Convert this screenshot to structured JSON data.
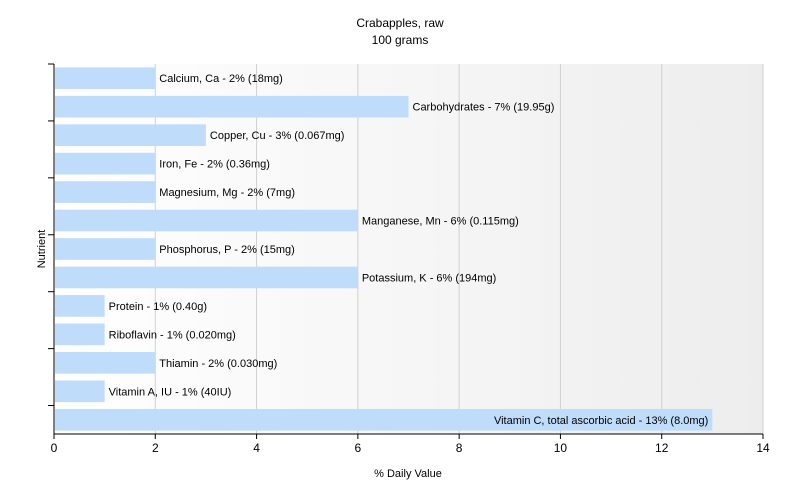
{
  "chart_data": {
    "type": "bar",
    "orientation": "horizontal",
    "title": "Crabapples, raw",
    "subtitle": "100 grams",
    "xlabel": "% Daily Value",
    "ylabel": "Nutrient",
    "xlim": [
      0,
      14
    ],
    "xticks": [
      0,
      2,
      4,
      6,
      8,
      10,
      12,
      14
    ],
    "grid": true,
    "bar_color": "#bfdcfb",
    "categories": [
      "Calcium, Ca",
      "Carbohydrates",
      "Copper, Cu",
      "Iron, Fe",
      "Magnesium, Mg",
      "Manganese, Mn",
      "Phosphorus, P",
      "Potassium, K",
      "Protein",
      "Riboflavin",
      "Thiamin",
      "Vitamin A, IU",
      "Vitamin C, total ascorbic acid"
    ],
    "values": [
      2,
      7,
      3,
      2,
      2,
      6,
      2,
      6,
      1,
      1,
      2,
      1,
      13
    ],
    "labels": [
      "Calcium, Ca - 2% (18mg)",
      "Carbohydrates - 7% (19.95g)",
      "Copper, Cu - 3% (0.067mg)",
      "Iron, Fe - 2% (0.36mg)",
      "Magnesium, Mg - 2% (7mg)",
      "Manganese, Mn - 6% (0.115mg)",
      "Phosphorus, P - 2% (15mg)",
      "Potassium, K - 6% (194mg)",
      "Protein - 1% (0.40g)",
      "Riboflavin - 1% (0.020mg)",
      "Thiamin - 2% (0.030mg)",
      "Vitamin A, IU - 1% (40IU)",
      "Vitamin C, total ascorbic acid - 13% (8.0mg)"
    ]
  }
}
